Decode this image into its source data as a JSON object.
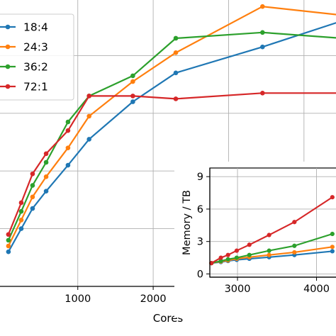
{
  "chart_data": [
    {
      "type": "line",
      "title": "",
      "xlabel": "Cores",
      "ylabel": "",
      "xlim": [
        -60,
        4500
      ],
      "ylim": [
        0.0,
        1.0
      ],
      "grid": true,
      "legend_position": "upper-left",
      "xticks": [
        1000,
        2000,
        3000,
        4000
      ],
      "xtick_labels": [
        "1000",
        "2000",
        "3000",
        "4000"
      ],
      "x": [
        80,
        250,
        400,
        580,
        870,
        1150,
        1730,
        2300,
        3450,
        4500
      ],
      "series": [
        {
          "name": "18:4",
          "color": "#1f77b4",
          "values": [
            0.12,
            0.2,
            0.27,
            0.33,
            0.42,
            0.51,
            0.64,
            0.74,
            0.83,
            0.92
          ]
        },
        {
          "name": "24:3",
          "color": "#ff7f0e",
          "values": [
            0.14,
            0.23,
            0.31,
            0.38,
            0.48,
            0.59,
            0.71,
            0.81,
            0.97,
            0.94
          ]
        },
        {
          "name": "36:2",
          "color": "#2ca02c",
          "values": [
            0.16,
            0.26,
            0.35,
            0.43,
            0.57,
            0.66,
            0.73,
            0.86,
            0.88,
            0.86
          ]
        },
        {
          "name": "72:1",
          "color": "#d62728",
          "values": [
            0.18,
            0.29,
            0.39,
            0.46,
            0.54,
            0.66,
            0.66,
            0.65,
            0.67,
            0.67
          ]
        }
      ]
    },
    {
      "type": "line",
      "title": "",
      "xlabel": "",
      "ylabel": "Memory / TB",
      "xlim": [
        2650,
        4300
      ],
      "ylim": [
        -0.3,
        9.8
      ],
      "grid": true,
      "xticks": [
        3000,
        4000
      ],
      "xtick_labels": [
        "3000",
        "4000"
      ],
      "yticks": [
        0,
        3,
        6,
        9
      ],
      "ytick_labels": [
        "0",
        "3",
        "6",
        "9"
      ],
      "x": [
        2670,
        2790,
        2880,
        2990,
        3150,
        3400,
        3720,
        4200
      ],
      "series": [
        {
          "name": "18:4",
          "color": "#1f77b4",
          "values": [
            1.0,
            1.1,
            1.2,
            1.3,
            1.4,
            1.55,
            1.75,
            2.1
          ]
        },
        {
          "name": "24:3",
          "color": "#ff7f0e",
          "values": [
            1.0,
            1.15,
            1.25,
            1.4,
            1.55,
            1.75,
            2.0,
            2.5
          ]
        },
        {
          "name": "36:2",
          "color": "#2ca02c",
          "values": [
            1.0,
            1.2,
            1.35,
            1.5,
            1.75,
            2.15,
            2.6,
            3.7
          ]
        },
        {
          "name": "72:1",
          "color": "#d62728",
          "values": [
            1.0,
            1.5,
            1.75,
            2.15,
            2.7,
            3.6,
            4.8,
            7.1
          ]
        }
      ]
    }
  ]
}
